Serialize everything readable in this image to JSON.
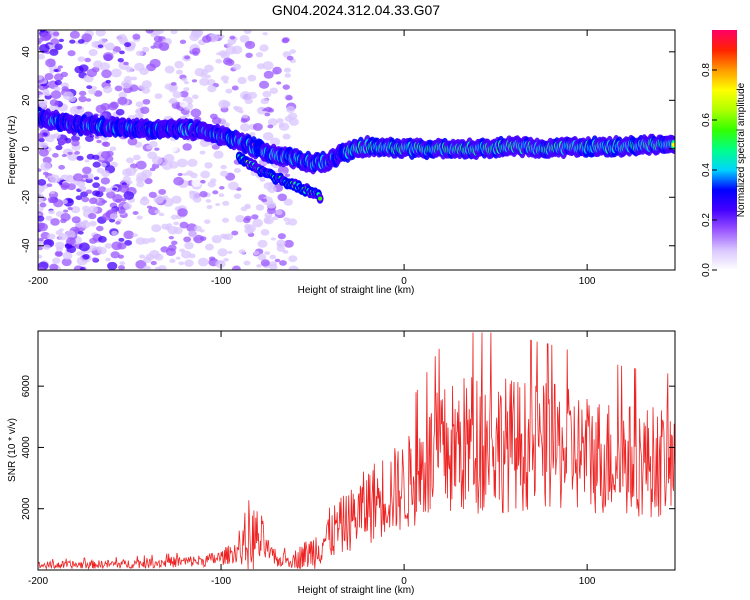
{
  "title": "GN04.2024.312.04.33.G07",
  "chart_data": [
    {
      "type": "heatmap",
      "xlabel": "Height of straight line (km)",
      "ylabel": "Frequency (Hz)",
      "xlim": [
        -200,
        148
      ],
      "ylim": [
        -50,
        49
      ],
      "xticks": [
        -200,
        -100,
        0,
        100
      ],
      "yticks": [
        -40,
        -20,
        0,
        20,
        40
      ],
      "ridge": {
        "description_points_x": [
          -200,
          -180,
          -160,
          -140,
          -120,
          -105,
          -90,
          -80,
          -70,
          -60,
          -50,
          -40,
          -35,
          -30,
          -20,
          -10,
          0,
          20,
          40,
          60,
          80,
          100,
          120,
          148
        ],
        "frequency_hz": [
          13,
          10,
          9,
          8,
          8,
          7,
          3,
          0,
          -3,
          -4,
          -6,
          -5,
          -2,
          -1,
          1,
          1,
          0,
          0,
          0,
          1,
          0,
          1,
          1,
          2
        ]
      },
      "secondary_branch": {
        "x": [
          -90,
          -80,
          -70,
          -60,
          -50,
          -45
        ],
        "frequency_hz": [
          -4,
          -8,
          -12,
          -15,
          -18,
          -20
        ]
      },
      "noise_region_x": [
        -200,
        -60
      ]
    },
    {
      "type": "line",
      "color": "#ee2222",
      "xlabel": "Height of straight line (km)",
      "ylabel": "SNR (10 * v/v)",
      "xlim": [
        -200,
        148
      ],
      "ylim": [
        0,
        7800
      ],
      "xticks": [
        -200,
        -100,
        0,
        100
      ],
      "yticks": [
        2000,
        4000,
        6000
      ],
      "envelope": {
        "x": [
          -200,
          -150,
          -110,
          -100,
          -90,
          -85,
          -82,
          -78,
          -75,
          -70,
          -60,
          -50,
          -40,
          -30,
          -20,
          -10,
          0,
          10,
          20,
          40,
          60,
          80,
          100,
          120,
          148
        ],
        "mean": [
          150,
          200,
          300,
          400,
          650,
          800,
          1000,
          950,
          700,
          300,
          350,
          600,
          1200,
          1600,
          2100,
          2500,
          2700,
          3300,
          3800,
          4200,
          4100,
          4000,
          3800,
          3600,
          3500
        ],
        "spread": [
          120,
          150,
          200,
          250,
          400,
          900,
          1200,
          900,
          400,
          200,
          300,
          600,
          900,
          1000,
          1300,
          1400,
          1500,
          1800,
          2200,
          2400,
          2200,
          2100,
          2000,
          1900,
          1800
        ],
        "peak_max": 7750
      }
    }
  ],
  "colorbar": {
    "label": "Normalized spectral amplitude",
    "ticks": [
      0.0,
      0.2,
      0.4,
      0.6,
      0.8
    ],
    "colors": [
      "#ffffff",
      "#d9c6ff",
      "#9955ff",
      "#4400ff",
      "#0000ff",
      "#00d5ff",
      "#00ff88",
      "#33ff00",
      "#b0ff00",
      "#ffff00",
      "#ff9900",
      "#ff2200",
      "#ff0066"
    ],
    "range": [
      0,
      0.96
    ]
  }
}
